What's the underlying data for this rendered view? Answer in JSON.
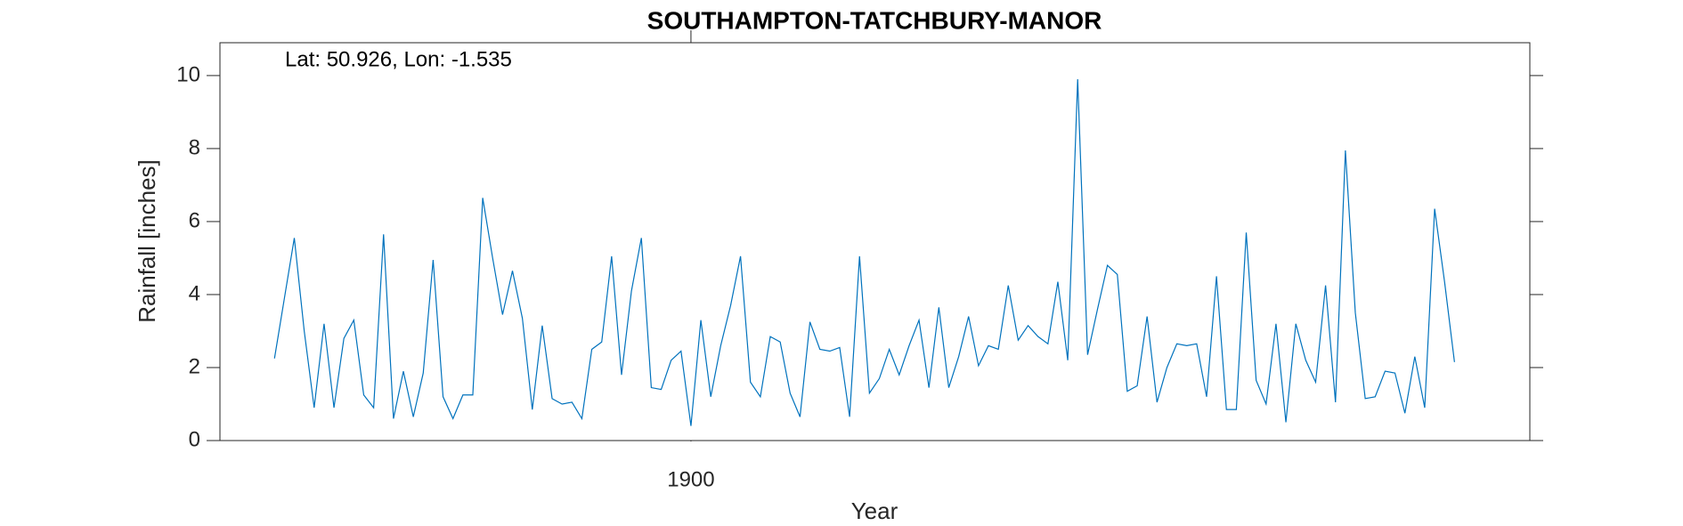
{
  "chart_data": {
    "type": "line",
    "title": "SOUTHAMPTON-TATCHBURY-MANOR",
    "annotation": "Lat: 50.926, Lon: -1.535",
    "xlabel": "Year",
    "ylabel": "Rainfall [inches]",
    "x": [
      1858,
      1859,
      1860,
      1861,
      1862,
      1863,
      1864,
      1865,
      1866,
      1867,
      1868,
      1869,
      1870,
      1871,
      1872,
      1873,
      1874,
      1875,
      1876,
      1877,
      1878,
      1879,
      1880,
      1881,
      1882,
      1883,
      1884,
      1885,
      1886,
      1887,
      1888,
      1889,
      1890,
      1891,
      1892,
      1893,
      1894,
      1895,
      1896,
      1897,
      1898,
      1899,
      1900,
      1901,
      1902,
      1903,
      1904,
      1905,
      1906,
      1907,
      1908,
      1909,
      1910,
      1911,
      1912,
      1913,
      1914,
      1915,
      1916,
      1917,
      1918,
      1919,
      1920,
      1921,
      1922,
      1923,
      1924,
      1925,
      1926,
      1927,
      1928,
      1929,
      1930,
      1931,
      1932,
      1933,
      1934,
      1935,
      1936,
      1937,
      1938,
      1939,
      1940,
      1941,
      1942,
      1943,
      1944,
      1945,
      1946,
      1947,
      1948,
      1949,
      1950,
      1951,
      1952,
      1953,
      1954,
      1955,
      1956,
      1957,
      1958,
      1959,
      1960,
      1961,
      1962,
      1963,
      1964,
      1965,
      1966,
      1967,
      1968,
      1969,
      1970,
      1971,
      1972,
      1973,
      1974,
      1975,
      1976,
      1977
    ],
    "series": [
      {
        "name": "Rainfall",
        "color": "#0072bd",
        "values": [
          2.25,
          3.9,
          5.55,
          3.0,
          0.9,
          3.2,
          0.9,
          2.8,
          3.3,
          1.25,
          0.9,
          5.65,
          0.6,
          1.9,
          0.65,
          1.85,
          4.95,
          1.2,
          0.6,
          1.25,
          1.25,
          6.65,
          5.0,
          3.45,
          4.65,
          3.35,
          0.85,
          3.15,
          1.15,
          1.0,
          1.05,
          0.6,
          2.5,
          2.7,
          5.05,
          1.8,
          4.1,
          5.55,
          1.45,
          1.4,
          2.2,
          2.45,
          0.4,
          3.3,
          1.2,
          2.6,
          3.7,
          5.05,
          1.6,
          1.2,
          2.85,
          2.7,
          1.3,
          0.65,
          3.25,
          2.5,
          2.45,
          2.55,
          0.65,
          5.05,
          1.3,
          1.7,
          2.5,
          1.8,
          2.6,
          3.3,
          1.45,
          3.65,
          1.45,
          2.3,
          3.4,
          2.05,
          2.6,
          2.5,
          4.25,
          2.75,
          3.15,
          2.85,
          2.65,
          4.35,
          2.2,
          9.9,
          2.35,
          3.6,
          4.8,
          4.55,
          1.35,
          1.5,
          3.4,
          1.05,
          2.0,
          2.65,
          2.6,
          2.65,
          1.2,
          4.5,
          0.85,
          0.85,
          5.7,
          1.65,
          1.0,
          3.2,
          0.5,
          3.2,
          2.2,
          1.6,
          4.25,
          1.05,
          7.95,
          3.5,
          1.15,
          1.2,
          1.9,
          1.85,
          0.75,
          2.3,
          0.9,
          6.35,
          4.35,
          2.15
        ]
      }
    ],
    "xlim": [
      1852.5,
      1984.6
    ],
    "ylim": [
      0,
      10.9
    ],
    "xticks": [
      1900
    ],
    "yticks": [
      0,
      2,
      4,
      6,
      8,
      10
    ]
  }
}
